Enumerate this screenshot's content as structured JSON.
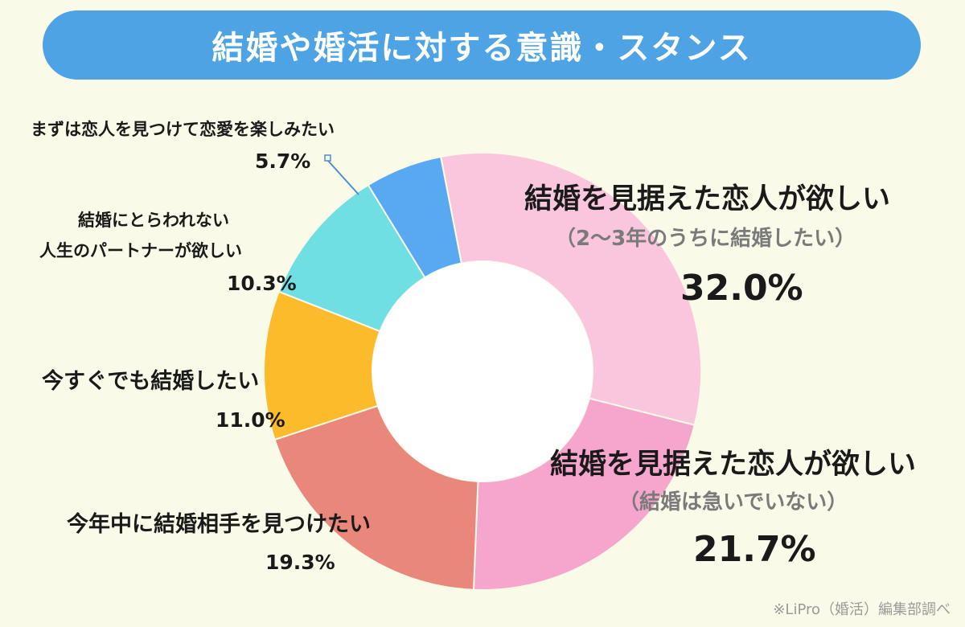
{
  "header": {
    "title": "結婚や婚活に対する意識・スタンス"
  },
  "chart_data": {
    "type": "pie",
    "title": "結婚や婚活に対する意識・スタンス",
    "donut": true,
    "segments": [
      {
        "label": "結婚を見据えた恋人が欲しい",
        "sublabel": "（2〜3年のうちに結婚したい）",
        "value": 32.0,
        "value_label": "32.0%",
        "color": "#f9c6dd"
      },
      {
        "label": "結婚を見据えた恋人が欲しい",
        "sublabel": "（結婚は急いでいない）",
        "value": 21.7,
        "value_label": "21.7%",
        "color": "#f6a6cc"
      },
      {
        "label": "今年中に結婚相手を見つけたい",
        "value": 19.3,
        "value_label": "19.3%",
        "color": "#e9877b"
      },
      {
        "label": "今すぐでも結婚したい",
        "value": 11.0,
        "value_label": "11.0%",
        "color": "#fbbb2a"
      },
      {
        "label_lines": [
          "結婚にとらわれない",
          "人生のパートナーが欲しい"
        ],
        "value": 10.3,
        "value_label": "10.3%",
        "color": "#6fdfe4"
      },
      {
        "label": "まずは恋人を見つけて恋愛を楽しみたい",
        "value": 5.7,
        "value_label": "5.7%",
        "color": "#59a8f2"
      }
    ]
  },
  "source": "※LiPro（婚活）編集部調べ"
}
